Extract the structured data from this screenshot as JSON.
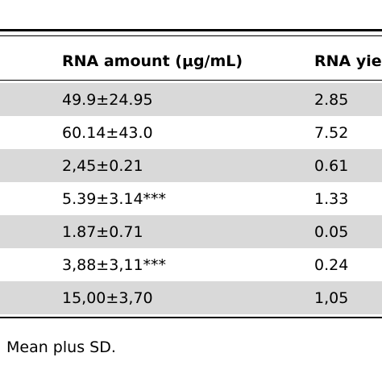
{
  "table": {
    "headers": [
      "RNA amount (μg/mL)",
      "RNA yie"
    ],
    "rows": [
      {
        "amount": "49.9±24.95",
        "yield": "2.85"
      },
      {
        "amount": "60.14±43.0",
        "yield": "7.52"
      },
      {
        "amount": "2,45±0.21",
        "yield": "0.61"
      },
      {
        "amount": "5.39±3.14***",
        "yield": "1.33"
      },
      {
        "amount": "1.87±0.71",
        "yield": "0.05"
      },
      {
        "amount": "3,88±3,11***",
        "yield": "0.24"
      },
      {
        "amount": "15,00±3,70",
        "yield": "1,05"
      }
    ]
  },
  "footnote": "Mean plus SD.",
  "colors": {
    "row_shade": "#d9d9d9",
    "rule": "#000000",
    "text": "#000000"
  }
}
